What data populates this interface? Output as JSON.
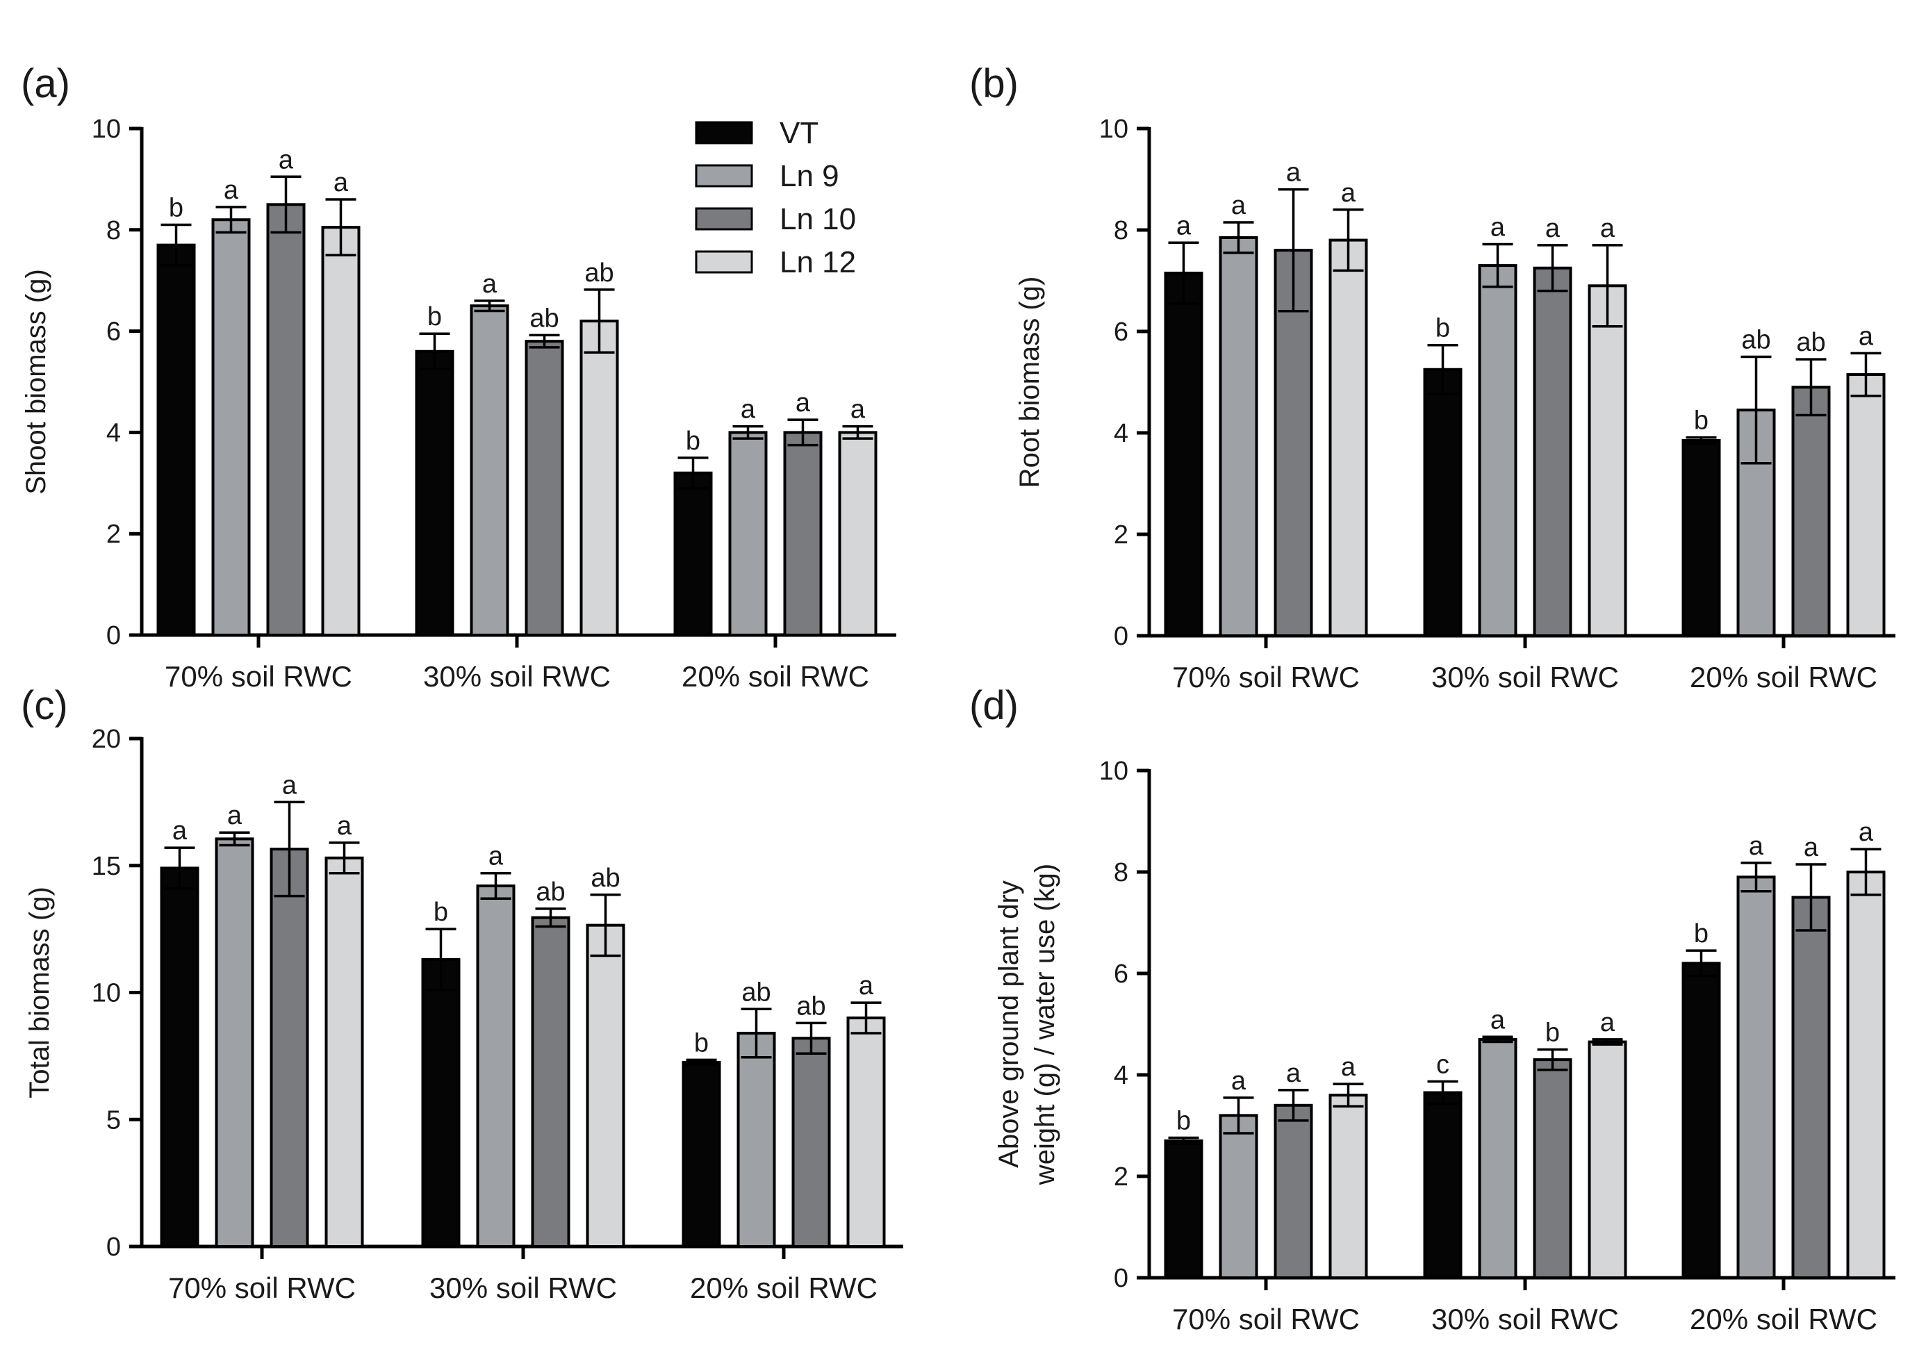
{
  "figure": {
    "series_colors": {
      "VT": "#050505",
      "Ln 9": "#9ea1a5",
      "Ln 10": "#797b7e",
      "Ln 12": "#d4d6d8"
    }
  },
  "legend": {
    "items": [
      {
        "name": "VT",
        "color": "#050505"
      },
      {
        "name": "Ln 9",
        "color": "#9ea1a5"
      },
      {
        "name": "Ln 10",
        "color": "#797b7e"
      },
      {
        "name": "Ln 12",
        "color": "#d4d6d8"
      }
    ]
  },
  "chart_data": [
    {
      "panel": "(a)",
      "type": "bar",
      "ylabel": "Shoot biomass (g)",
      "ylabel_lines": [
        "Shoot biomass (g)"
      ],
      "ylim": [
        0,
        10
      ],
      "yticks": [
        0,
        2,
        4,
        6,
        8,
        10
      ],
      "categories": [
        "70% soil RWC",
        "30% soil RWC",
        "20% soil RWC"
      ],
      "series": [
        {
          "name": "VT",
          "values": [
            7.7,
            5.6,
            3.2
          ],
          "errors": [
            0.4,
            0.35,
            0.3
          ],
          "letters": [
            "b",
            "b",
            "b"
          ]
        },
        {
          "name": "Ln 9",
          "values": [
            8.2,
            6.5,
            4.0
          ],
          "errors": [
            0.25,
            0.1,
            0.12
          ],
          "letters": [
            "a",
            "a",
            "a"
          ]
        },
        {
          "name": "Ln 10",
          "values": [
            8.5,
            5.8,
            4.0
          ],
          "errors": [
            0.55,
            0.12,
            0.25
          ],
          "letters": [
            "a",
            "ab",
            "a"
          ]
        },
        {
          "name": "Ln 12",
          "values": [
            8.05,
            6.2,
            4.0
          ],
          "errors": [
            0.55,
            0.62,
            0.12
          ],
          "letters": [
            "a",
            "ab",
            "a"
          ]
        }
      ]
    },
    {
      "panel": "(b)",
      "type": "bar",
      "ylabel": "Root biomass (g)",
      "ylabel_lines": [
        "Root biomass (g)"
      ],
      "ylim": [
        0,
        10
      ],
      "yticks": [
        0,
        2,
        4,
        6,
        8,
        10
      ],
      "categories": [
        "70% soil RWC",
        "30% soil RWC",
        "20% soil RWC"
      ],
      "series": [
        {
          "name": "VT",
          "values": [
            7.15,
            5.25,
            3.85
          ],
          "errors": [
            0.6,
            0.48,
            0.06
          ],
          "letters": [
            "a",
            "b",
            "b"
          ]
        },
        {
          "name": "Ln 9",
          "values": [
            7.85,
            7.3,
            4.45
          ],
          "errors": [
            0.3,
            0.42,
            1.05
          ],
          "letters": [
            "a",
            "a",
            "ab"
          ]
        },
        {
          "name": "Ln 10",
          "values": [
            7.6,
            7.25,
            4.9
          ],
          "errors": [
            1.2,
            0.45,
            0.55
          ],
          "letters": [
            "a",
            "a",
            "ab"
          ]
        },
        {
          "name": "Ln 12",
          "values": [
            7.8,
            6.9,
            5.15
          ],
          "errors": [
            0.6,
            0.8,
            0.42
          ],
          "letters": [
            "a",
            "a",
            "a"
          ]
        }
      ]
    },
    {
      "panel": "(c)",
      "type": "bar",
      "ylabel": "Total biomass (g)",
      "ylabel_lines": [
        "Total biomass (g)"
      ],
      "ylim": [
        0,
        20
      ],
      "yticks": [
        0,
        5,
        10,
        15,
        20
      ],
      "categories": [
        "70% soil RWC",
        "30% soil RWC",
        "20% soil RWC"
      ],
      "series": [
        {
          "name": "VT",
          "values": [
            14.9,
            11.3,
            7.25
          ],
          "errors": [
            0.8,
            1.2,
            0.1
          ],
          "letters": [
            "a",
            "b",
            "b"
          ]
        },
        {
          "name": "Ln 9",
          "values": [
            16.05,
            14.2,
            8.4
          ],
          "errors": [
            0.25,
            0.5,
            0.95
          ],
          "letters": [
            "a",
            "a",
            "ab"
          ]
        },
        {
          "name": "Ln 10",
          "values": [
            15.65,
            12.95,
            8.2
          ],
          "errors": [
            1.85,
            0.35,
            0.6
          ],
          "letters": [
            "a",
            "ab",
            "ab"
          ]
        },
        {
          "name": "Ln 12",
          "values": [
            15.3,
            12.65,
            9.0
          ],
          "errors": [
            0.6,
            1.2,
            0.6
          ],
          "letters": [
            "a",
            "ab",
            "a"
          ]
        }
      ]
    },
    {
      "panel": "(d)",
      "type": "bar",
      "ylabel": "Above ground plant dry weight (g) / water use (kg)",
      "ylabel_lines": [
        "Above ground plant dry",
        "weight (g) / water use (kg)"
      ],
      "ylim": [
        0,
        10
      ],
      "yticks": [
        0,
        2,
        4,
        6,
        8,
        10
      ],
      "categories": [
        "70% soil RWC",
        "30% soil RWC",
        "20% soil RWC"
      ],
      "series": [
        {
          "name": "VT",
          "values": [
            2.7,
            3.65,
            6.2
          ],
          "errors": [
            0.06,
            0.22,
            0.25
          ],
          "letters": [
            "b",
            "c",
            "b"
          ]
        },
        {
          "name": "Ln 9",
          "values": [
            3.2,
            4.7,
            7.9
          ],
          "errors": [
            0.35,
            0.05,
            0.28
          ],
          "letters": [
            "a",
            "a",
            "a"
          ]
        },
        {
          "name": "Ln 10",
          "values": [
            3.4,
            4.3,
            7.5
          ],
          "errors": [
            0.3,
            0.2,
            0.65
          ],
          "letters": [
            "a",
            "b",
            "a"
          ]
        },
        {
          "name": "Ln 12",
          "values": [
            3.6,
            4.65,
            8.0
          ],
          "errors": [
            0.22,
            0.05,
            0.45
          ],
          "letters": [
            "a",
            "a",
            "a"
          ]
        }
      ]
    }
  ]
}
